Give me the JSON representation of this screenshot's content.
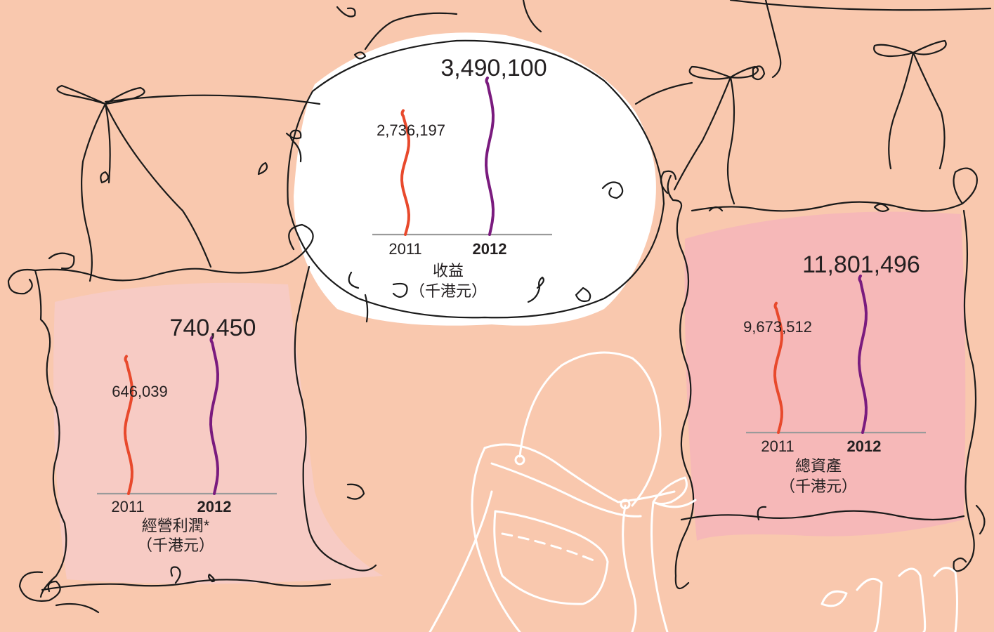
{
  "colors": {
    "background": "#f9c8ae",
    "series_2011": "#e8492c",
    "series_2012": "#7a1b7e",
    "baseline": "#9a9a9a",
    "left_panel": "#f7cbc4",
    "right_panel": "#f6b8b8",
    "center_panel": "#ffffff",
    "ink": "#1a1a1a",
    "text": "#231f20"
  },
  "chart_data": [
    {
      "type": "bar",
      "id": "revenue",
      "title": "收益",
      "unit": "（千港元）",
      "categories": [
        "2011",
        "2012"
      ],
      "values": [
        2736197,
        3490100
      ],
      "value_labels": [
        "2,736,197",
        "3,490,100"
      ]
    },
    {
      "type": "bar",
      "id": "operating_profit",
      "title": "經營利潤*",
      "unit": "（千港元）",
      "categories": [
        "2011",
        "2012"
      ],
      "values": [
        646039,
        740450
      ],
      "value_labels": [
        "646,039",
        "740,450"
      ]
    },
    {
      "type": "bar",
      "id": "total_assets",
      "title": "總資產",
      "unit": "（千港元）",
      "categories": [
        "2011",
        "2012"
      ],
      "values": [
        9673512,
        11801496
      ],
      "value_labels": [
        "9,673,512",
        "11,801,496"
      ]
    }
  ]
}
